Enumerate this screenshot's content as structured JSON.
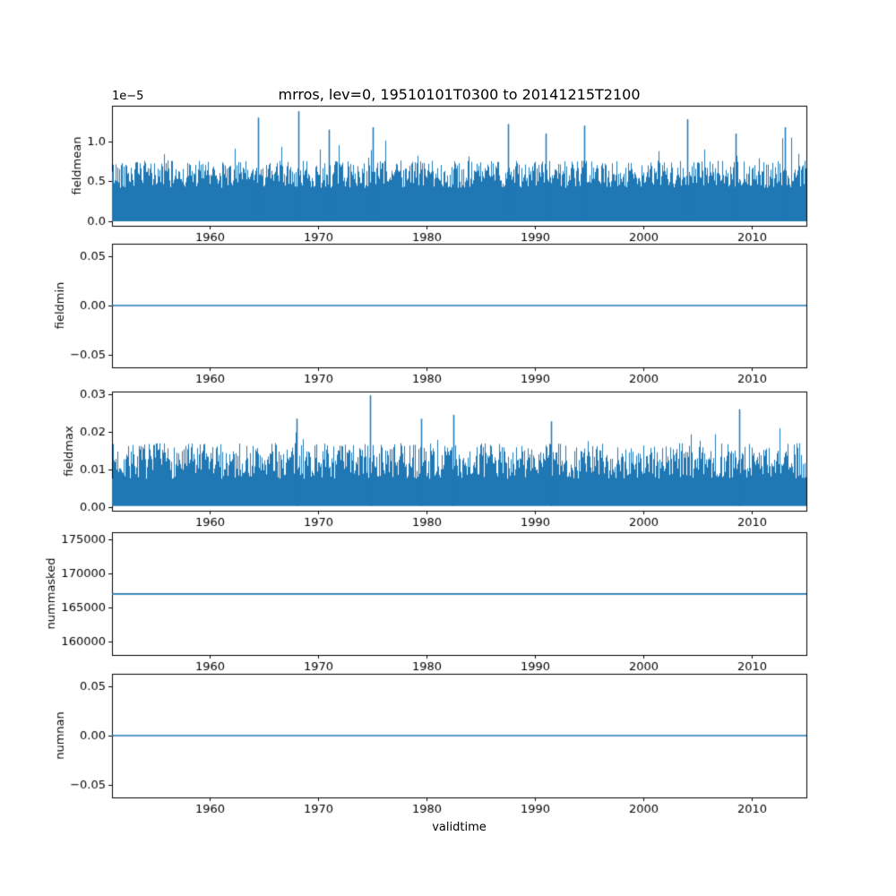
{
  "title": "mrros, lev=0, 19510101T0300 to 20141215T2100",
  "xlabel": "validtime",
  "accent_color": "#1f77b4",
  "axis_color": "#000000",
  "chart_data": [
    {
      "type": "line",
      "name": "fieldmean",
      "ylabel": "fieldmean",
      "offset_text": "1e−5",
      "x_range": [
        1951,
        2015
      ],
      "xticks": [
        {
          "v": 1960,
          "l": "1960"
        },
        {
          "v": 1970,
          "l": "1970"
        },
        {
          "v": 1980,
          "l": "1980"
        },
        {
          "v": 1990,
          "l": "1990"
        },
        {
          "v": 2000,
          "l": "2000"
        },
        {
          "v": 2010,
          "l": "2010"
        }
      ],
      "ylim": [
        -5.6e-07,
        1.449e-05
      ],
      "yticks": [
        {
          "v": 0,
          "l": "0.0"
        },
        {
          "v": 5e-06,
          "l": "0.5"
        },
        {
          "v": 1e-05,
          "l": "1.0"
        }
      ],
      "series": {
        "style": "noisy_band",
        "seed": 42,
        "low": 0,
        "high_base": 4.2e-06,
        "high_var": 3.4e-06,
        "spike_prob": 0.05,
        "spike_max": 4e-06,
        "clamp": 1.25e-05,
        "peaks": [
          {
            "x": 1964.5,
            "v": 1.3e-05
          },
          {
            "x": 1968.2,
            "v": 1.38e-05
          },
          {
            "x": 1971.0,
            "v": 1.15e-05
          },
          {
            "x": 1975.0,
            "v": 1.18e-05
          },
          {
            "x": 1987.5,
            "v": 1.22e-05
          },
          {
            "x": 1991.0,
            "v": 1.1e-05
          },
          {
            "x": 1994.5,
            "v": 1.2e-05
          },
          {
            "x": 2004.0,
            "v": 1.28e-05
          },
          {
            "x": 2008.5,
            "v": 1.1e-05
          },
          {
            "x": 2013.0,
            "v": 1.18e-05
          }
        ]
      }
    },
    {
      "type": "line",
      "name": "fieldmin",
      "ylabel": "fieldmin",
      "x_range": [
        1951,
        2015
      ],
      "xticks": [
        {
          "v": 1960,
          "l": "1960"
        },
        {
          "v": 1970,
          "l": "1970"
        },
        {
          "v": 1980,
          "l": "1980"
        },
        {
          "v": 1990,
          "l": "1990"
        },
        {
          "v": 2000,
          "l": "2000"
        },
        {
          "v": 2010,
          "l": "2010"
        }
      ],
      "ylim": [
        -0.0625,
        0.0625
      ],
      "yticks": [
        {
          "v": -0.05,
          "l": "−0.05"
        },
        {
          "v": 0,
          "l": "0.00"
        },
        {
          "v": 0.05,
          "l": "0.05"
        }
      ],
      "series": {
        "style": "hline",
        "value": 0.0
      }
    },
    {
      "type": "line",
      "name": "fieldmax",
      "ylabel": "fieldmax",
      "x_range": [
        1951,
        2015
      ],
      "xticks": [
        {
          "v": 1960,
          "l": "1960"
        },
        {
          "v": 1970,
          "l": "1970"
        },
        {
          "v": 1980,
          "l": "1980"
        },
        {
          "v": 1990,
          "l": "1990"
        },
        {
          "v": 2000,
          "l": "2000"
        },
        {
          "v": 2010,
          "l": "2010"
        }
      ],
      "ylim": [
        -0.00095,
        0.0307
      ],
      "yticks": [
        {
          "v": 0,
          "l": "0.00"
        },
        {
          "v": 0.01,
          "l": "0.01"
        },
        {
          "v": 0.02,
          "l": "0.02"
        },
        {
          "v": 0.03,
          "l": "0.03"
        }
      ],
      "series": {
        "style": "noisy_band",
        "seed": 7,
        "low": 0.0003,
        "high_base": 0.0075,
        "high_var": 0.0095,
        "spike_prob": 0.05,
        "spike_max": 0.005,
        "clamp": 0.0255,
        "peaks": [
          {
            "x": 1968.0,
            "v": 0.0235
          },
          {
            "x": 1974.8,
            "v": 0.0297
          },
          {
            "x": 1979.5,
            "v": 0.0235
          },
          {
            "x": 1982.5,
            "v": 0.0245
          },
          {
            "v": 0.0228,
            "x": 1991.5
          },
          {
            "x": 2008.8,
            "v": 0.026
          }
        ]
      }
    },
    {
      "type": "line",
      "name": "nummasked",
      "ylabel": "nummasked",
      "x_range": [
        1951,
        2015
      ],
      "xticks": [
        {
          "v": 1960,
          "l": "1960"
        },
        {
          "v": 1970,
          "l": "1970"
        },
        {
          "v": 1980,
          "l": "1980"
        },
        {
          "v": 1990,
          "l": "1990"
        },
        {
          "v": 2000,
          "l": "2000"
        },
        {
          "v": 2010,
          "l": "2010"
        }
      ],
      "ylim": [
        158000,
        176100
      ],
      "yticks": [
        {
          "v": 160000,
          "l": "160000"
        },
        {
          "v": 165000,
          "l": "165000"
        },
        {
          "v": 170000,
          "l": "170000"
        },
        {
          "v": 175000,
          "l": "175000"
        }
      ],
      "series": {
        "style": "hline",
        "value": 167000
      }
    },
    {
      "type": "line",
      "name": "numnan",
      "ylabel": "numnan",
      "x_range": [
        1951,
        2015
      ],
      "xticks": [
        {
          "v": 1960,
          "l": "1960"
        },
        {
          "v": 1970,
          "l": "1970"
        },
        {
          "v": 1980,
          "l": "1980"
        },
        {
          "v": 1990,
          "l": "1990"
        },
        {
          "v": 2000,
          "l": "2000"
        },
        {
          "v": 2010,
          "l": "2010"
        }
      ],
      "ylim": [
        -0.0625,
        0.0625
      ],
      "yticks": [
        {
          "v": -0.05,
          "l": "−0.05"
        },
        {
          "v": 0,
          "l": "0.00"
        },
        {
          "v": 0.05,
          "l": "0.05"
        }
      ],
      "series": {
        "style": "hline",
        "value": 0.0
      }
    }
  ]
}
